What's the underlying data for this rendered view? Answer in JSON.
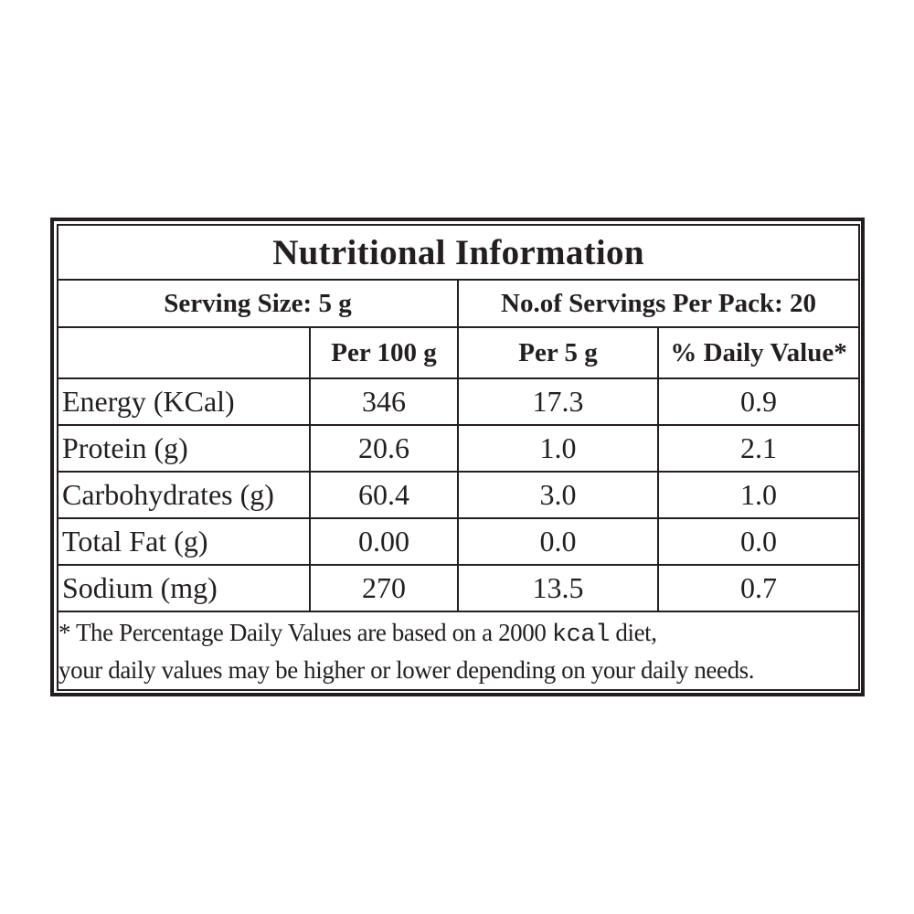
{
  "title": "Nutritional Information",
  "serving": {
    "size": "Serving Size: 5 g",
    "per_pack": "No.of Servings Per Pack: 20"
  },
  "columns": {
    "nutrient": "",
    "per100": "Per 100 g",
    "per5": "Per 5 g",
    "dv": "% Daily Value*"
  },
  "rows": [
    {
      "name": "Energy (KCal)",
      "per100": "346",
      "per5": "17.3",
      "dv": "0.9"
    },
    {
      "name": "Protein (g)",
      "per100": "20.6",
      "per5": "1.0",
      "dv": "2.1"
    },
    {
      "name": "Carbohydrates (g)",
      "per100": "60.4",
      "per5": "3.0",
      "dv": "1.0"
    },
    {
      "name": "Total Fat (g)",
      "per100": "0.00",
      "per5": "0.0",
      "dv": "0.0"
    },
    {
      "name": "Sodium (mg)",
      "per100": "270",
      "per5": "13.5",
      "dv": "0.7"
    }
  ],
  "footnote": {
    "line1_before": "* The Percentage Daily Values are based on a 2000 ",
    "line1_unit": "kcal",
    "line1_after": " diet,",
    "line2": "your daily values may be higher or lower depending on your daily needs."
  }
}
